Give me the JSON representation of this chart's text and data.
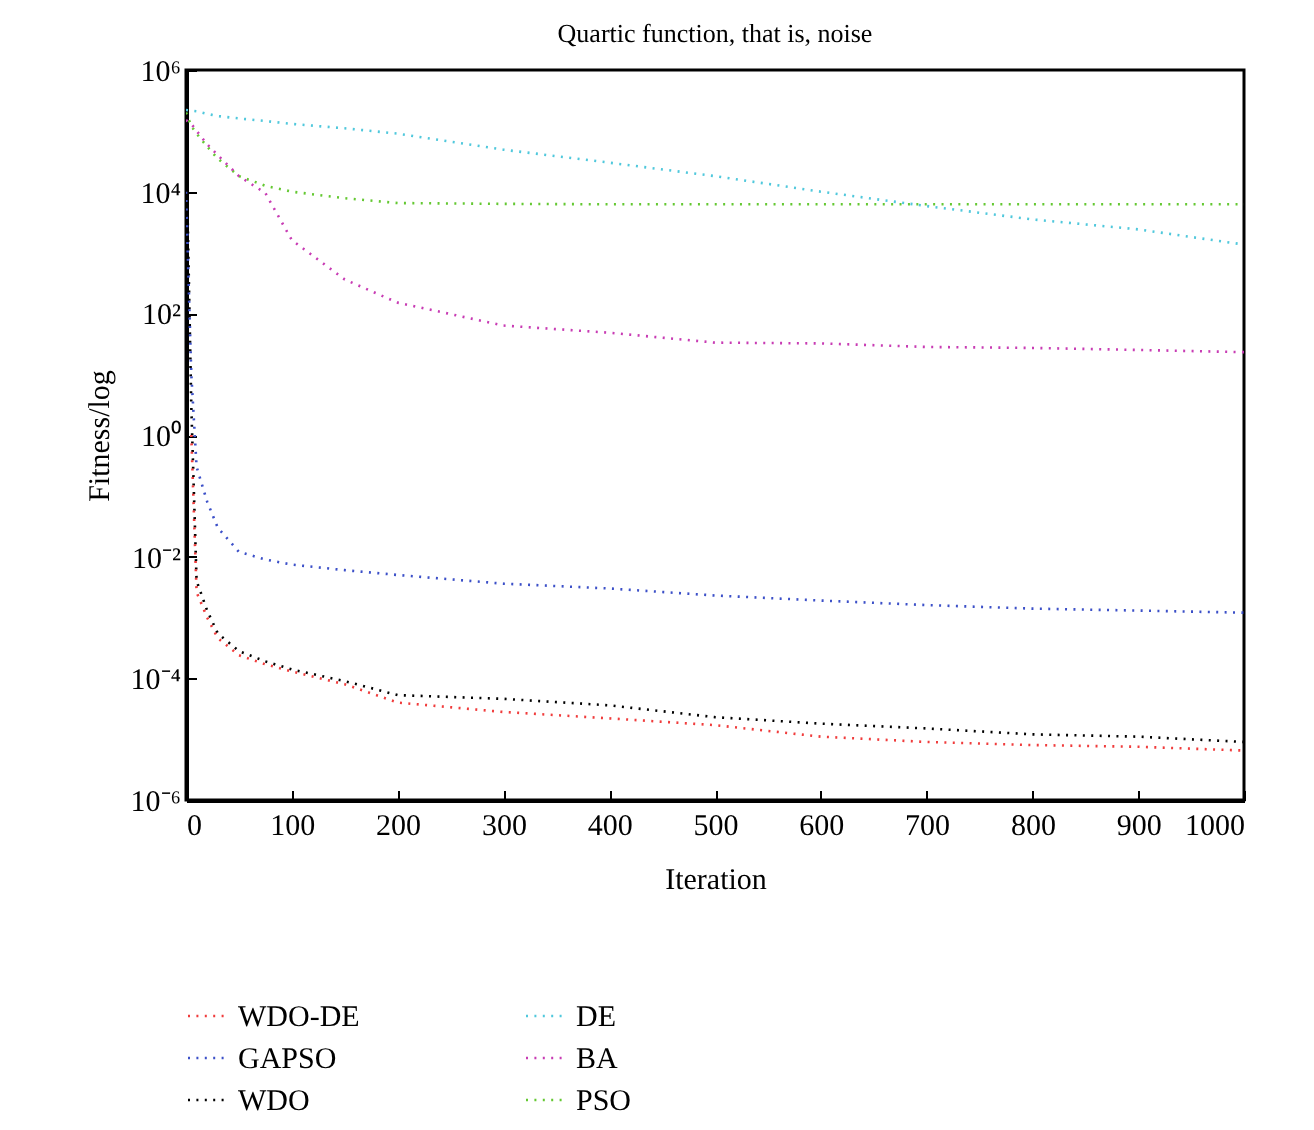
{
  "chart_data": {
    "type": "line",
    "title": "Quartic function, that is, noise",
    "xlabel": "Iteration",
    "ylabel": "Fitness/log",
    "log": "y",
    "grid": false,
    "legend": "bottom",
    "line_style": "dotted",
    "marker": "none",
    "xlim": [
      0,
      1000
    ],
    "xticks": [
      0,
      100,
      200,
      300,
      400,
      500,
      600,
      700,
      800,
      900,
      {
        "value": 1000,
        "label": "1000"
      }
    ],
    "ylim": [
      1e-06,
      1000000.0
    ],
    "yticks": [
      {
        "value": 1e-06,
        "label": "10⁻⁶"
      },
      {
        "value": 0.0001,
        "label": "10⁻⁴"
      },
      {
        "value": 0.01,
        "label": "10⁻²"
      },
      {
        "value": 1,
        "label": "10⁰"
      },
      {
        "value": 100,
        "label": "10²"
      },
      {
        "value": 10000,
        "label": "10⁴"
      },
      {
        "value": 1000000,
        "label": "10⁶"
      }
    ],
    "x": [
      0,
      5,
      10,
      20,
      30,
      50,
      75,
      100,
      150,
      200,
      300,
      400,
      500,
      600,
      700,
      800,
      900,
      1000
    ],
    "series": [
      {
        "name": "WDO-DE",
        "color": "#f03c3c",
        "values": [
          null,
          1,
          0.0026,
          0.001,
          0.00046,
          0.00024,
          0.00017,
          0.00013,
          8e-05,
          4e-05,
          2.8e-05,
          2.2e-05,
          1.7e-05,
          1.1e-05,
          9e-06,
          8e-06,
          7.5e-06,
          6.5e-06
        ]
      },
      {
        "name": "GAPSO",
        "color": "#3c50c8",
        "values": [
          10000,
          10,
          0.3,
          0.08,
          0.03,
          0.012,
          0.009,
          0.0074,
          0.006,
          0.005,
          0.0036,
          0.003,
          0.0023,
          0.0019,
          0.0016,
          0.0014,
          0.0013,
          0.0012
        ]
      },
      {
        "name": "WDO",
        "color": "#000000",
        "values": [
          100000,
          3,
          0.004,
          0.0013,
          0.00055,
          0.00028,
          0.00019,
          0.00014,
          9e-05,
          5.3e-05,
          4.6e-05,
          3.6e-05,
          2.3e-05,
          1.8e-05,
          1.5e-05,
          1.2e-05,
          1.1e-05,
          9e-06
        ]
      },
      {
        "name": "DE",
        "color": "#50c8dc",
        "values": [
          220000,
          215000,
          210000,
          190000,
          175000,
          160000,
          145000,
          130000,
          110000,
          90000,
          49000,
          30000,
          18000,
          10000,
          5800,
          3500,
          2400,
          1350
        ]
      },
      {
        "name": "BA",
        "color": "#c83cb4",
        "values": [
          150000,
          130000,
          100000,
          60000,
          40000,
          18000,
          9500,
          1600,
          360,
          150,
          63,
          48,
          33,
          32,
          28,
          27,
          25,
          23
        ]
      },
      {
        "name": "PSO",
        "color": "#64c832",
        "values": [
          200000,
          120000,
          90000,
          55000,
          35000,
          18000,
          12500,
          10000,
          7800,
          6500,
          6300,
          6200,
          6200,
          6200,
          6200,
          6200,
          6200,
          6200
        ]
      }
    ]
  }
}
